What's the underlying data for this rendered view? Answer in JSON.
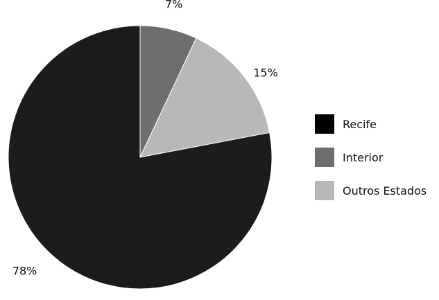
{
  "chart_data": {
    "type": "pie",
    "slices": [
      {
        "label": "Interior",
        "value": 7,
        "value_label": "7%",
        "color": "#6e6e6e"
      },
      {
        "label": "Outros Estados",
        "value": 15,
        "value_label": "15%",
        "color": "#b8b8b8"
      },
      {
        "label": "Recife",
        "value": 78,
        "value_label": "78%",
        "color": "#1c1c1c"
      }
    ],
    "legend": {
      "placement": "right",
      "items": [
        {
          "label": "Recife",
          "color": "#000000"
        },
        {
          "label": "Interior",
          "color": "#6e6e6e"
        },
        {
          "label": "Outros Estados",
          "color": "#b8b8b8"
        }
      ]
    }
  }
}
